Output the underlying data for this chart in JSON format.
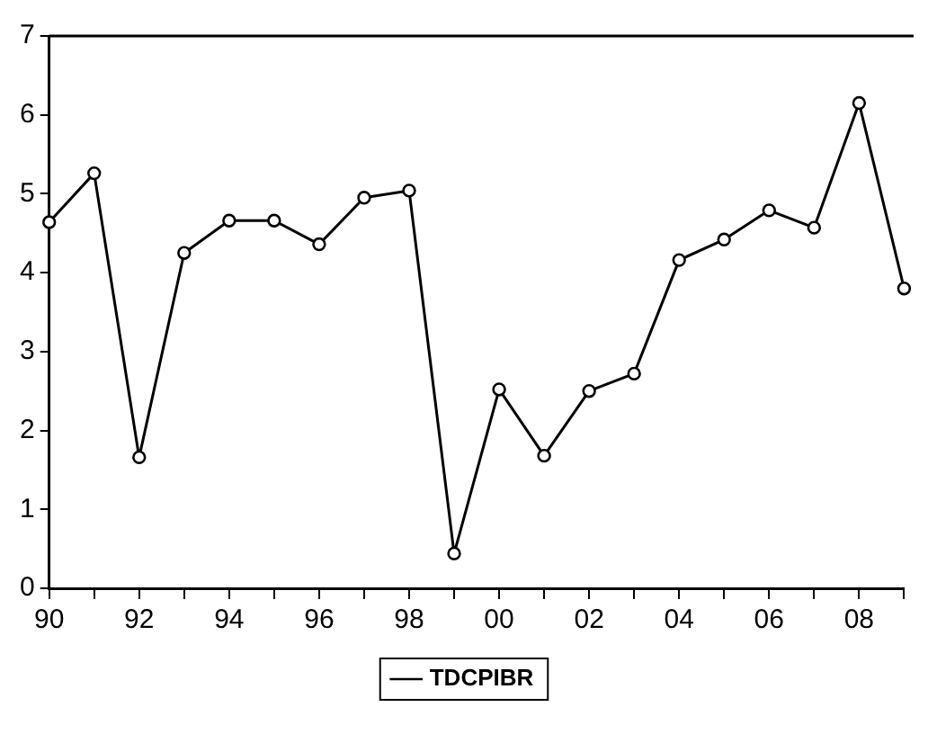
{
  "chart_data": {
    "type": "line",
    "x": [
      1990,
      1991,
      1992,
      1993,
      1994,
      1995,
      1996,
      1997,
      1998,
      1999,
      2000,
      2001,
      2002,
      2003,
      2004,
      2005,
      2006,
      2007,
      2008,
      2009
    ],
    "series": [
      {
        "name": "TDCPIBR",
        "color": "#000000",
        "values": [
          4.64,
          5.26,
          1.66,
          4.25,
          4.66,
          4.66,
          4.36,
          4.95,
          5.04,
          0.44,
          2.52,
          1.68,
          2.5,
          2.72,
          4.16,
          4.42,
          4.79,
          4.57,
          6.15,
          3.8
        ]
      }
    ],
    "xlim": [
      1990,
      2009
    ],
    "xticks": [
      {
        "value": 1990,
        "label": "90"
      },
      {
        "value": 1991,
        "label": null
      },
      {
        "value": 1992,
        "label": "92"
      },
      {
        "value": 1993,
        "label": null
      },
      {
        "value": 1994,
        "label": "94"
      },
      {
        "value": 1995,
        "label": null
      },
      {
        "value": 1996,
        "label": "96"
      },
      {
        "value": 1997,
        "label": null
      },
      {
        "value": 1998,
        "label": "98"
      },
      {
        "value": 1999,
        "label": null
      },
      {
        "value": 2000,
        "label": "00"
      },
      {
        "value": 2001,
        "label": null
      },
      {
        "value": 2002,
        "label": "02"
      },
      {
        "value": 2003,
        "label": null
      },
      {
        "value": 2004,
        "label": "04"
      },
      {
        "value": 2005,
        "label": null
      },
      {
        "value": 2006,
        "label": "06"
      },
      {
        "value": 2007,
        "label": null
      },
      {
        "value": 2008,
        "label": "08"
      },
      {
        "value": 2009,
        "label": null
      }
    ],
    "ylim": [
      0,
      7
    ],
    "yticks": [
      0,
      1,
      2,
      3,
      4,
      5,
      6,
      7
    ],
    "grid": false,
    "legend": "bottom",
    "marker": "circle",
    "line_style": "solid"
  }
}
